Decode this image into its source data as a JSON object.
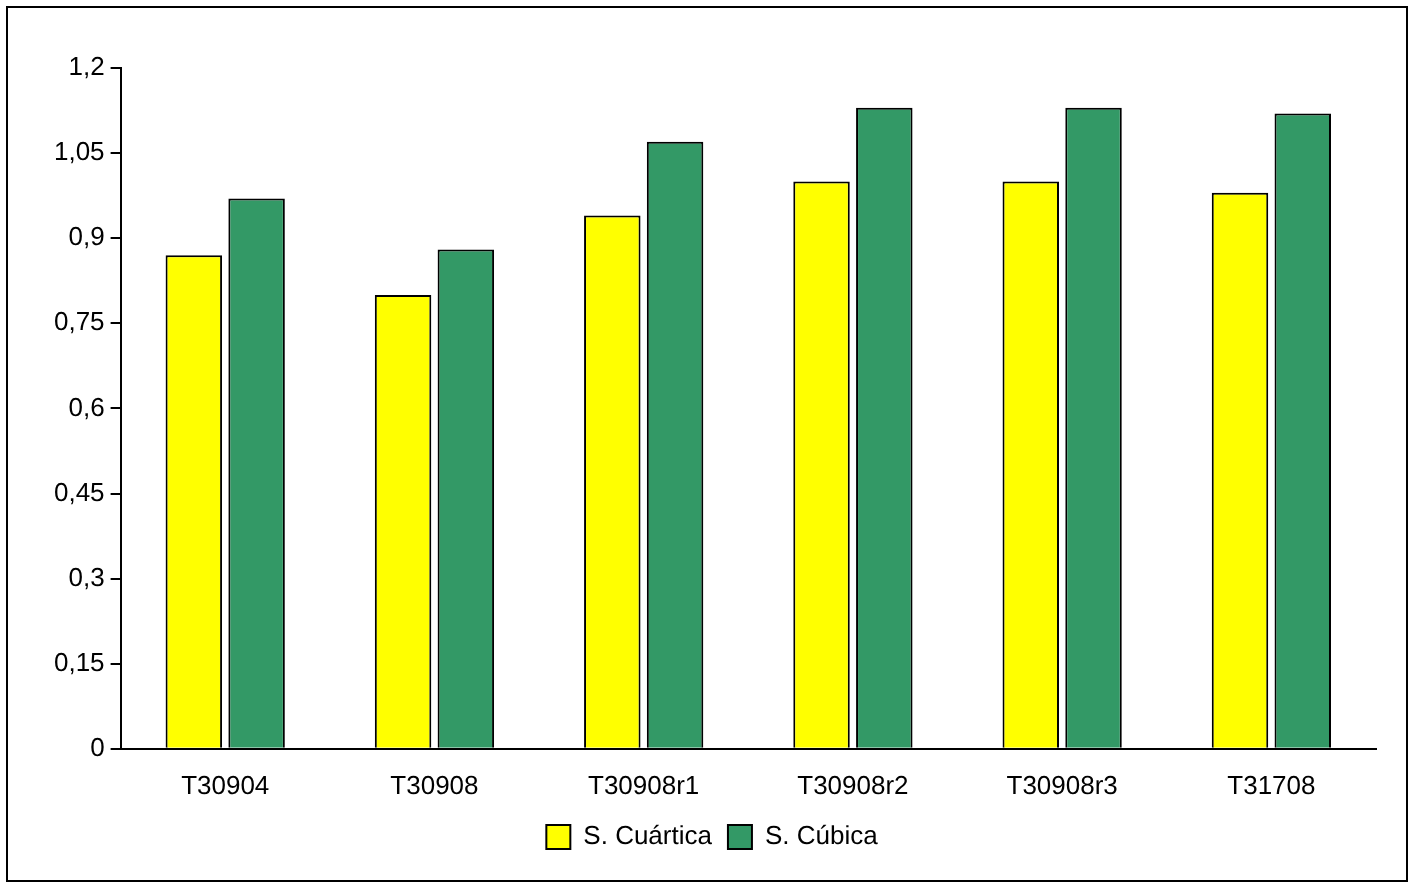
{
  "chart_data": {
    "type": "bar",
    "categories": [
      "T30904",
      "T30908",
      "T30908r1",
      "T30908r2",
      "T30908r3",
      "T31708"
    ],
    "series": [
      {
        "name": "S. Cuártica",
        "color": "#ffff00",
        "values": [
          0.87,
          0.8,
          0.94,
          1.0,
          1.0,
          0.98
        ]
      },
      {
        "name": "S. Cúbica",
        "color": "#339966",
        "values": [
          0.97,
          0.88,
          1.07,
          1.13,
          1.13,
          1.12
        ]
      }
    ],
    "ylim": [
      0,
      1.2
    ],
    "yticks": [
      {
        "value": 0,
        "label": "0"
      },
      {
        "value": 0.15,
        "label": "0,15"
      },
      {
        "value": 0.3,
        "label": "0,3"
      },
      {
        "value": 0.45,
        "label": "0,45"
      },
      {
        "value": 0.6,
        "label": "0,6"
      },
      {
        "value": 0.75,
        "label": "0,75"
      },
      {
        "value": 0.9,
        "label": "0,9"
      },
      {
        "value": 1.05,
        "label": "1,05"
      },
      {
        "value": 1.2,
        "label": "1,2"
      }
    ],
    "grid": false,
    "legend": "bottom"
  }
}
